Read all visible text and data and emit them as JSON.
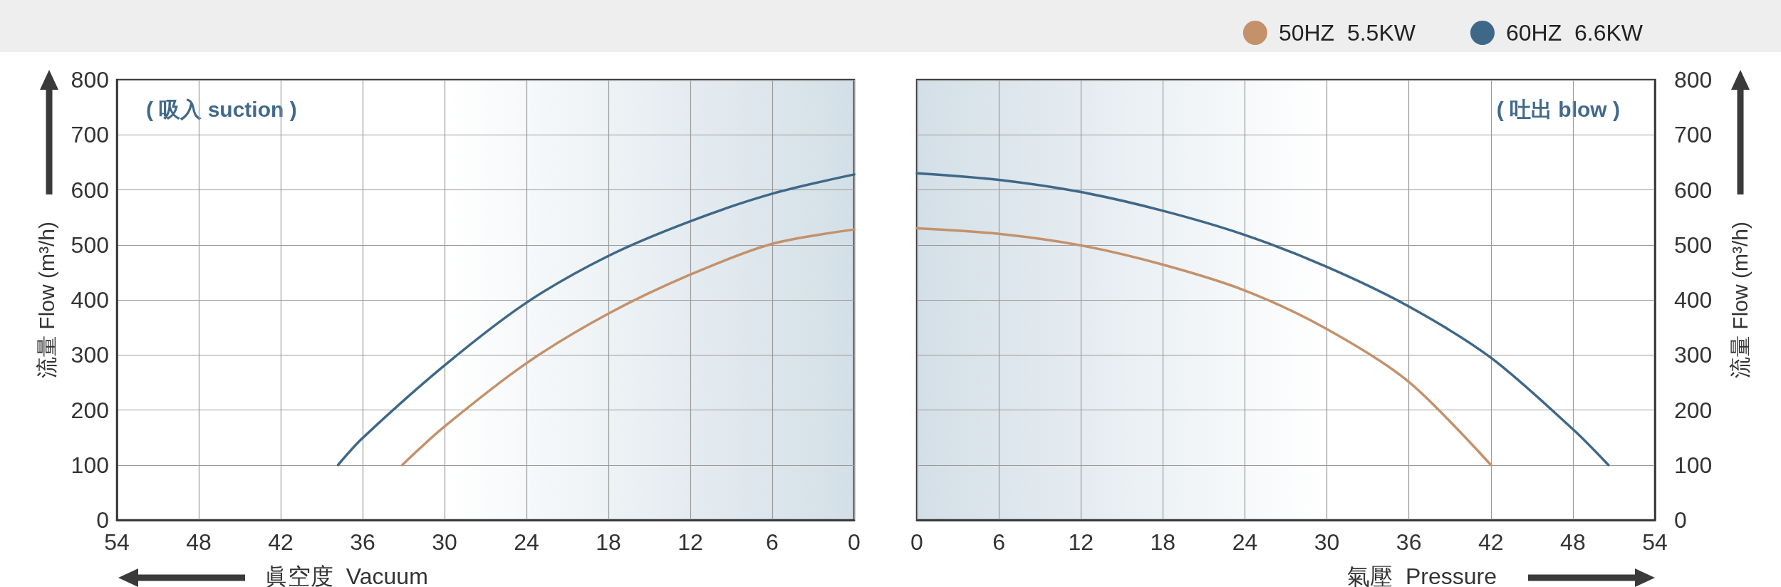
{
  "chart_data": [
    {
      "type": "line",
      "xlabel": "眞空度  Vacuum",
      "ylabel": "流量 Flow (m³/h)",
      "annotations": [
        "( 吸入 suction )"
      ],
      "series": [
        {
          "color": "#c4916b",
          "x": [
            0,
            6,
            12,
            18,
            24,
            30,
            33.1
          ],
          "values": [
            528,
            502,
            446,
            375,
            285,
            170,
            100
          ]
        },
        {
          "color": "#3f6888",
          "x": [
            0,
            6,
            12,
            18,
            24,
            30,
            36,
            37.8
          ],
          "values": [
            628,
            593,
            543,
            480,
            395,
            281,
            149,
            100
          ]
        }
      ],
      "xlim": [
        54,
        0
      ],
      "xticks": [
        0,
        6,
        12,
        18,
        24,
        30,
        36,
        42,
        48,
        54
      ],
      "ylim": [
        0,
        800
      ],
      "yticks": [
        0,
        100,
        200,
        300,
        400,
        500,
        600,
        700,
        800
      ],
      "grid": true,
      "legend": false,
      "marker": "none",
      "line_style": "solid",
      "bands": [
        {
          "axis": "x",
          "from": 30,
          "to": 0,
          "color": "#d3dfe7"
        }
      ]
    },
    {
      "type": "line",
      "xlabel": "氣壓  Pressure",
      "ylabel": "流量 Flow (m³/h)",
      "annotations": [
        "( 吐出 blow )"
      ],
      "series": [
        {
          "name": "50HZ  5.5KW",
          "color": "#c4916b",
          "x": [
            0,
            6,
            12,
            18,
            24,
            30,
            36,
            42
          ],
          "values": [
            530,
            520,
            499,
            464,
            417,
            347,
            251,
            100
          ]
        },
        {
          "name": "60HZ  6.6KW",
          "color": "#3f6888",
          "x": [
            0,
            6,
            12,
            18,
            24,
            30,
            36,
            42,
            48,
            50.6
          ],
          "values": [
            630,
            618,
            596,
            562,
            518,
            460,
            388,
            295,
            165,
            100
          ]
        }
      ],
      "xlim": [
        0,
        54
      ],
      "xticks": [
        0,
        6,
        12,
        18,
        24,
        30,
        36,
        42,
        48,
        54
      ],
      "ylim": [
        0,
        800
      ],
      "yticks": [
        0,
        100,
        200,
        300,
        400,
        500,
        600,
        700,
        800
      ],
      "grid": true,
      "legend": "top right",
      "marker": "none",
      "line_style": "solid",
      "bands": [
        {
          "axis": "x",
          "from": 30,
          "to": 0,
          "color": "#d3dfe7"
        }
      ]
    }
  ]
}
